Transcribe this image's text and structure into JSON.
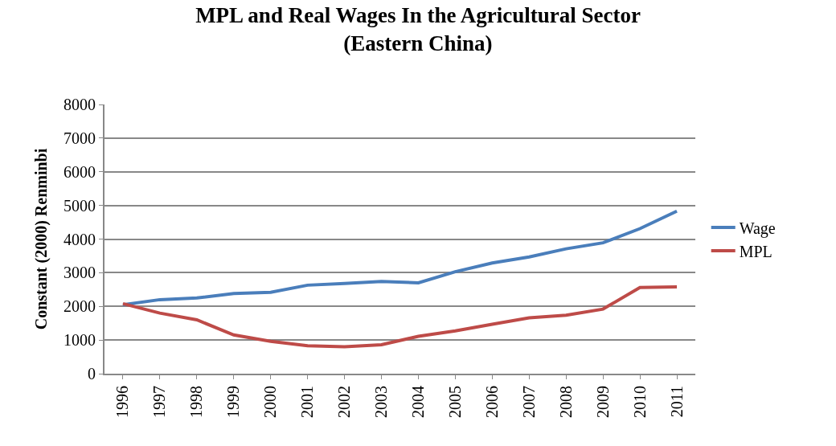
{
  "chart_data": {
    "type": "line",
    "title": "MPL and Real Wages In the Agricultural Sector\n(Eastern China)",
    "ylabel": "Constant (2000) Renminbi",
    "categories": [
      "1996",
      "1997",
      "1998",
      "1999",
      "2000",
      "2001",
      "2002",
      "2003",
      "2004",
      "2005",
      "2006",
      "2007",
      "2008",
      "2009",
      "2010",
      "2011"
    ],
    "series": [
      {
        "name": "Wage",
        "color": "#4a7ebb",
        "values": [
          2050,
          2200,
          2250,
          2380,
          2420,
          2630,
          2680,
          2740,
          2700,
          3030,
          3290,
          3470,
          3710,
          3890,
          4310,
          4830
        ]
      },
      {
        "name": "MPL",
        "color": "#be4b48",
        "values": [
          2080,
          1800,
          1600,
          1150,
          960,
          830,
          800,
          860,
          1110,
          1270,
          1470,
          1660,
          1740,
          1920,
          2560,
          2580
        ]
      }
    ],
    "ylim": [
      0,
      8000
    ],
    "yticks": [
      0,
      1000,
      2000,
      3000,
      4000,
      5000,
      6000,
      7000,
      8000
    ],
    "grid": "y",
    "legend": "right",
    "marker": "none",
    "line_style": "solid"
  }
}
